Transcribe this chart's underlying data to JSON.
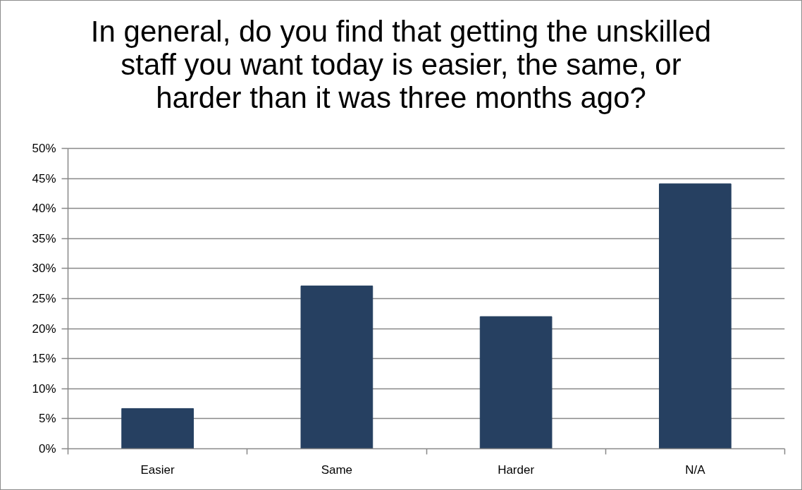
{
  "chart_data": {
    "type": "bar",
    "title": "In general, do you find that getting the unskilled staff you want today is easier, the same, or harder than it was three months ago?",
    "categories": [
      "Easier",
      "Same",
      "Harder",
      "N/A"
    ],
    "values": [
      6.7,
      27.1,
      22.0,
      44.1
    ],
    "color": "#264061",
    "ylim": [
      0,
      50
    ],
    "yticks": [
      {
        "value": 0,
        "label": "0%"
      },
      {
        "value": 5,
        "label": "5%"
      },
      {
        "value": 10,
        "label": "10%"
      },
      {
        "value": 15,
        "label": "15%"
      },
      {
        "value": 20,
        "label": "20%"
      },
      {
        "value": 25,
        "label": "25%"
      },
      {
        "value": 30,
        "label": "30%"
      },
      {
        "value": 35,
        "label": "35%"
      },
      {
        "value": 40,
        "label": "40%"
      },
      {
        "value": 45,
        "label": "45%"
      },
      {
        "value": 50,
        "label": "50%"
      }
    ],
    "grid": "y"
  }
}
